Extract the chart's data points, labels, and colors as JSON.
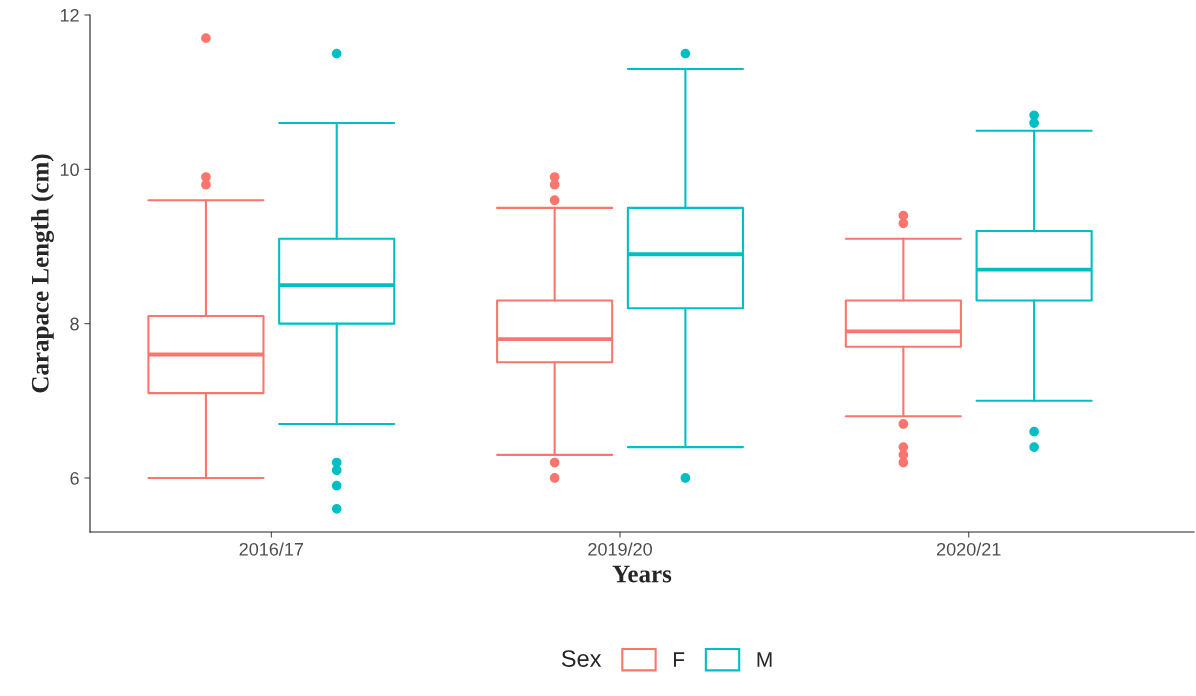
{
  "chart_data": {
    "type": "box",
    "xlabel": "Years",
    "ylabel": "Carapace Length (cm)",
    "legend_title": "Sex",
    "legend": "bottom",
    "grid": false,
    "categories": [
      "2016/17",
      "2019/20",
      "2020/21"
    ],
    "ylim": [
      5.3,
      12
    ],
    "yticks": [
      6,
      8,
      10,
      12
    ],
    "series": [
      {
        "name": "F",
        "color": "#f8766d",
        "boxes": [
          {
            "low": 6.0,
            "q1": 7.1,
            "median": 7.6,
            "q3": 8.1,
            "high": 9.6,
            "outliers": [
              11.7,
              9.9,
              9.8
            ]
          },
          {
            "low": 6.3,
            "q1": 7.5,
            "median": 7.8,
            "q3": 8.3,
            "high": 9.5,
            "outliers": [
              9.9,
              9.8,
              9.6,
              6.2,
              6.0
            ]
          },
          {
            "low": 6.8,
            "q1": 7.7,
            "median": 7.9,
            "q3": 8.3,
            "high": 9.1,
            "outliers": [
              9.4,
              9.3,
              6.7,
              6.4,
              6.3,
              6.2
            ]
          }
        ]
      },
      {
        "name": "M",
        "color": "#00bfc4",
        "boxes": [
          {
            "low": 6.7,
            "q1": 8.0,
            "median": 8.5,
            "q3": 9.1,
            "high": 10.6,
            "outliers": [
              11.5,
              6.2,
              6.1,
              5.9,
              5.6
            ]
          },
          {
            "low": 6.4,
            "q1": 8.2,
            "median": 8.9,
            "q3": 9.5,
            "high": 11.3,
            "outliers": [
              11.5,
              6.0
            ]
          },
          {
            "low": 7.0,
            "q1": 8.3,
            "median": 8.7,
            "q3": 9.2,
            "high": 10.5,
            "outliers": [
              10.7,
              10.6,
              6.6,
              6.4
            ]
          }
        ]
      }
    ]
  }
}
